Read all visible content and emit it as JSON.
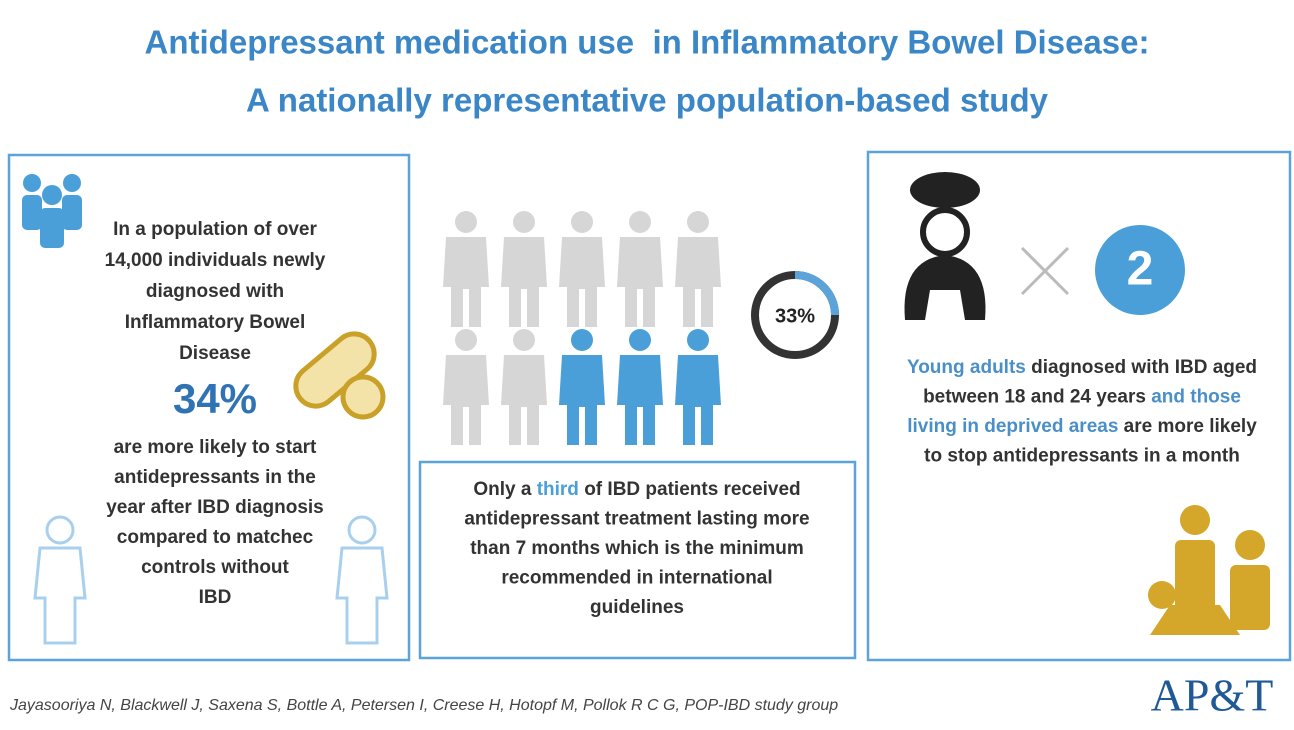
{
  "header": {
    "title_lines": [
      "Antidepressant medication use  in Inflammatory Bowel Disease:",
      "A nationally representative population-based study"
    ]
  },
  "left_panel": {
    "lines_top": [
      [
        {
          "text": "In a population of over",
          "color": "#333333"
        }
      ],
      [
        {
          "text": "14,000 individuals newly",
          "color": "#333333"
        }
      ],
      [
        {
          "text": "diagnosed with",
          "color": "#333333"
        }
      ],
      [
        {
          "text": "Inflammatory Bowel",
          "color": "#333333"
        }
      ],
      [
        {
          "text": "Disease",
          "color": "#333333"
        }
      ]
    ],
    "stat": "34%",
    "lines_bottom": [
      [
        {
          "text": "are more likely to start",
          "color": "#333333"
        }
      ],
      [
        {
          "text": "antidepressants in the",
          "color": "#333333"
        }
      ],
      [
        {
          "text": "year after IBD diagnosis",
          "color": "#333333"
        }
      ],
      [
        {
          "text": "compared to matchec",
          "color": "#333333"
        }
      ],
      [
        {
          "text": "controls without",
          "color": "#333333"
        }
      ],
      [
        {
          "text": "IBD",
          "color": "#333333"
        }
      ]
    ]
  },
  "middle_panel": {
    "stat": "33%",
    "lines": [
      [
        {
          "text": "Only a ",
          "color": "#333333"
        },
        {
          "text": "third",
          "color": "#4a9fd8"
        },
        {
          "text": " of IBD patients received",
          "color": "#333333"
        }
      ],
      [
        {
          "text": "antidepressant treatment lasting more",
          "color": "#333333"
        }
      ],
      [
        {
          "text": "than 7 months which is the minimum",
          "color": "#333333"
        }
      ],
      [
        {
          "text": "recommended in international",
          "color": "#333333"
        }
      ],
      [
        {
          "text": "guidelines",
          "color": "#333333"
        }
      ]
    ]
  },
  "right_panel": {
    "multiplier": "2",
    "lines": [
      [
        {
          "text": "Young adults",
          "color": "#4a8fc8"
        },
        {
          "text": " diagnosed with IBD aged",
          "color": "#333333"
        }
      ],
      [
        {
          "text": "between 18 and 24 years ",
          "color": "#333333"
        },
        {
          "text": "and those",
          "color": "#4a8fc8"
        }
      ],
      [
        {
          "text": "living in deprived areas",
          "color": "#4a8fc8"
        },
        {
          "text": " are more likely",
          "color": "#333333"
        }
      ],
      [
        {
          "text": "to stop antidepressants in a month",
          "color": "#333333"
        }
      ]
    ]
  },
  "footer": {
    "authors": "Jayasooriya N, Blackwell J, Saxena S, Bottle A, Petersen I, Creese H, Hotopf M, Pollok R C G, POP-IBD study group",
    "logo": "AP&T"
  }
}
